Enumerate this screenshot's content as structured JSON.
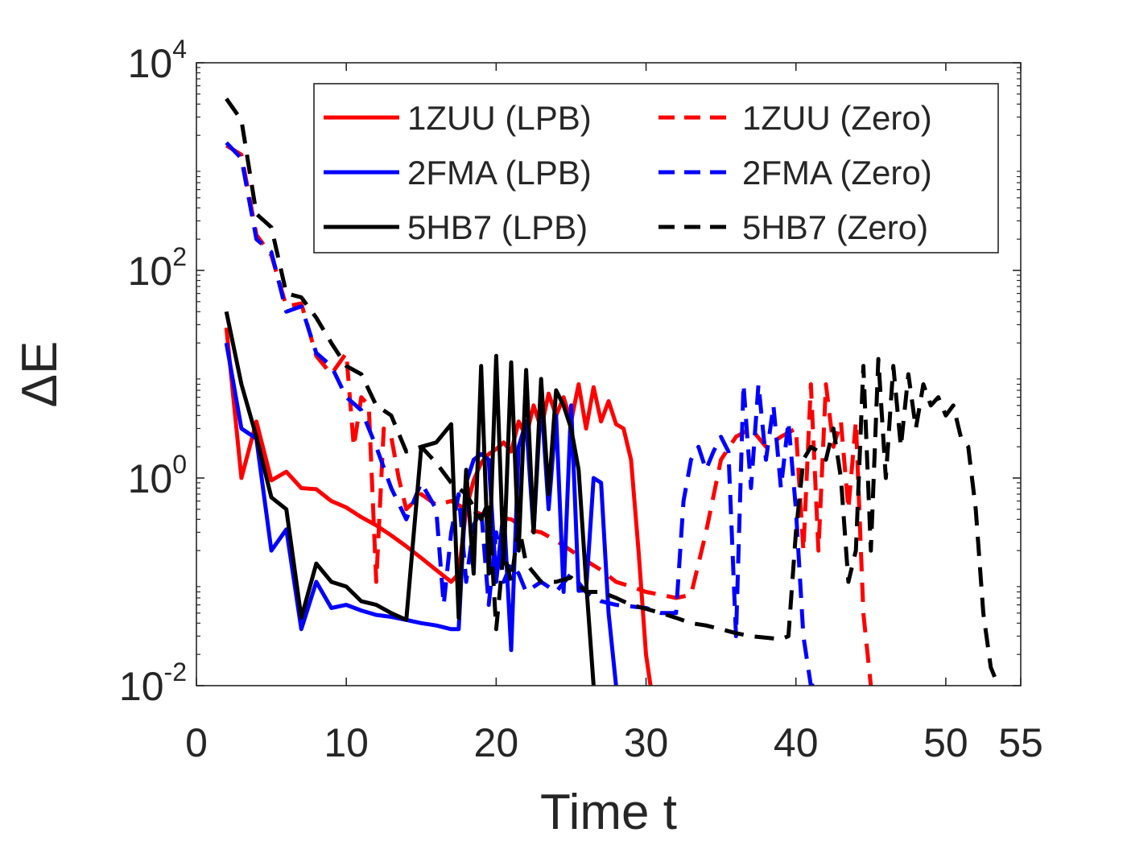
{
  "chart_data": {
    "type": "line",
    "title": "",
    "xlabel": "Time t",
    "ylabel": "ΔE",
    "xlim": [
      0,
      55
    ],
    "ylim_log10": [
      -2,
      4
    ],
    "xticks": [
      {
        "value": 0,
        "label": "0"
      },
      {
        "value": 10,
        "label": "10"
      },
      {
        "value": 20,
        "label": "20"
      },
      {
        "value": 30,
        "label": "30"
      },
      {
        "value": 40,
        "label": "40"
      },
      {
        "value": 50,
        "label": "50"
      },
      {
        "value": 55,
        "label": "55"
      }
    ],
    "yticks": [
      {
        "value": 0.01,
        "base": "10",
        "exp": "-2"
      },
      {
        "value": 1,
        "base": "10",
        "exp": "0"
      },
      {
        "value": 100,
        "base": "10",
        "exp": "2"
      },
      {
        "value": 10000,
        "base": "10",
        "exp": "4"
      }
    ],
    "grid": false,
    "legend_position": "top-right",
    "series": [
      {
        "name": "1ZUU (LPB)",
        "color": "#ff0000",
        "dash": "solid",
        "x": [
          2,
          3,
          4,
          5,
          6,
          7,
          8,
          9,
          10,
          11,
          12,
          13,
          14,
          15,
          16,
          17,
          17.5,
          18,
          18.5,
          19,
          19.5,
          20,
          20.5,
          21,
          21.5,
          22,
          22.5,
          23,
          23.5,
          24,
          24.5,
          25,
          25.5,
          26,
          26.5,
          27,
          27.5,
          28,
          28.5,
          29,
          29.5,
          30,
          30.3
        ],
        "y": [
          28,
          1,
          3.5,
          0.95,
          1.15,
          0.8,
          0.78,
          0.6,
          0.52,
          0.42,
          0.35,
          0.28,
          0.22,
          0.17,
          0.13,
          0.1,
          0.12,
          0.5,
          0.95,
          1.4,
          1.7,
          1.9,
          2.2,
          1.8,
          3.5,
          2.5,
          5,
          3,
          6.5,
          4,
          6,
          3.5,
          8,
          3,
          7.5,
          3.5,
          5.5,
          3.3,
          3,
          1.5,
          0.2,
          0.02,
          0.01
        ]
      },
      {
        "name": "1ZUU (Zero)",
        "color": "#ff0000",
        "dash": "dashed",
        "x": [
          2,
          3,
          4,
          5,
          6,
          7,
          8,
          9,
          10,
          10.5,
          11,
          11.5,
          12,
          12.5,
          13,
          13.5,
          14,
          15,
          16,
          17,
          18,
          19,
          20,
          21,
          22,
          23,
          24,
          25,
          26,
          27,
          28,
          29,
          30,
          31,
          32,
          33,
          34,
          35,
          36,
          37,
          38,
          39,
          40,
          40.5,
          41,
          41.5,
          42,
          42.5,
          43,
          43.5,
          44,
          44.5,
          45
        ],
        "y": [
          1600,
          1300,
          220,
          140,
          45,
          48,
          15,
          10,
          16,
          2,
          6,
          5,
          0.1,
          3,
          2.5,
          1,
          0.5,
          0.7,
          0.55,
          0.6,
          0.5,
          0.45,
          0.42,
          0.4,
          0.32,
          0.3,
          0.25,
          0.2,
          0.16,
          0.13,
          0.1,
          0.09,
          0.08,
          0.075,
          0.07,
          0.075,
          0.3,
          1.5,
          2.5,
          3,
          2,
          2.5,
          3,
          0.2,
          8,
          0.2,
          8,
          2,
          3.5,
          0.5,
          3.5,
          0.05,
          0.01
        ]
      },
      {
        "name": "2FMA (LPB)",
        "color": "#0000ff",
        "dash": "solid",
        "x": [
          2,
          3,
          4,
          5,
          6,
          7,
          8,
          9,
          10,
          11,
          12,
          13,
          14,
          15,
          16,
          17,
          17.5,
          18,
          18.5,
          19,
          19.5,
          20,
          20.5,
          21,
          21.5,
          22,
          22.5,
          23,
          23.5,
          24,
          24.5,
          25,
          25.5,
          26,
          26.5,
          27,
          27.5,
          28
        ],
        "y": [
          20,
          3,
          2.4,
          0.2,
          0.32,
          0.035,
          0.1,
          0.056,
          0.06,
          0.053,
          0.048,
          0.046,
          0.043,
          0.04,
          0.038,
          0.035,
          0.035,
          0.9,
          1.5,
          1.7,
          1.5,
          0.1,
          0.5,
          0.022,
          2,
          3.5,
          0.3,
          6,
          0.5,
          4,
          0.08,
          5,
          0.082,
          0.083,
          1,
          0.9,
          0.05,
          0.01
        ]
      },
      {
        "name": "2FMA (Zero)",
        "color": "#0000ff",
        "dash": "dashed",
        "x": [
          2,
          3,
          4,
          5,
          6,
          7,
          8,
          9,
          10,
          11,
          12,
          13,
          14,
          15,
          16,
          16.5,
          17,
          17.5,
          18,
          18.5,
          19,
          19.5,
          20,
          20.5,
          21,
          21.5,
          22,
          23,
          24,
          25,
          26,
          27,
          28,
          29,
          30,
          31,
          32,
          32.5,
          33,
          33.5,
          34,
          34.5,
          35,
          35.5,
          36,
          36.5,
          37,
          37.5,
          38,
          38.5,
          39,
          39.5,
          40,
          40.5,
          41,
          41.5
        ],
        "y": [
          1700,
          1200,
          200,
          150,
          40,
          45,
          16,
          12,
          6,
          4.5,
          2,
          0.8,
          0.4,
          0.9,
          0.5,
          0.06,
          0.3,
          0.7,
          0.1,
          0.35,
          0.5,
          0.06,
          0.3,
          0.1,
          0.15,
          0.12,
          0.08,
          0.1,
          0.08,
          0.12,
          0.08,
          0.065,
          0.06,
          0.058,
          0.056,
          0.05,
          0.05,
          0.6,
          1.5,
          2,
          1.2,
          1.8,
          2.5,
          1.8,
          0.03,
          8,
          0.8,
          8,
          1.5,
          5,
          0.8,
          3.5,
          0.5,
          0.03,
          0.01,
          0.01
        ]
      },
      {
        "name": "5HB7 (LPB)",
        "color": "#000000",
        "dash": "solid",
        "x": [
          2,
          3,
          4,
          5,
          6,
          7,
          8,
          9,
          10,
          11,
          12,
          13,
          14,
          15,
          16,
          17,
          17.5,
          18,
          18.5,
          19,
          19.5,
          20,
          20.5,
          21,
          21.5,
          22,
          22.5,
          23,
          23.5,
          24,
          24.5,
          25,
          25.5,
          26,
          26.5
        ],
        "y": [
          40,
          8,
          2.5,
          0.65,
          0.5,
          0.045,
          0.15,
          0.1,
          0.09,
          0.065,
          0.06,
          0.05,
          0.043,
          2,
          2.2,
          3.3,
          0.045,
          1.2,
          0.12,
          12,
          0.12,
          15,
          0.15,
          13,
          0.2,
          11,
          0.3,
          9,
          0.7,
          7,
          5,
          3,
          1.2,
          0.1,
          0.01
        ]
      },
      {
        "name": "5HB7 (Zero)",
        "color": "#000000",
        "dash": "dashed",
        "x": [
          2,
          3,
          4,
          5,
          6,
          7,
          8,
          9,
          10,
          11,
          12,
          13,
          14,
          15,
          16,
          17,
          18,
          19,
          19.5,
          20,
          20.5,
          21,
          21.5,
          22,
          23,
          24,
          25,
          26,
          27,
          28,
          29,
          30,
          31,
          32,
          33,
          34,
          35,
          36,
          37,
          38,
          39,
          39.5,
          40,
          40.5,
          41,
          41.5,
          42,
          42.5,
          43,
          43.5,
          44,
          44.5,
          45,
          45.5,
          46,
          46.5,
          47,
          47.5,
          48,
          48.5,
          49,
          49.5,
          50,
          50.5,
          51,
          51.5,
          52,
          52.5,
          53,
          53.5
        ],
        "y": [
          4500,
          2800,
          350,
          260,
          60,
          55,
          35,
          20,
          12,
          10,
          5,
          4,
          1.8,
          2,
          1.4,
          0.9,
          0.7,
          0.4,
          0.6,
          0.035,
          0.2,
          0.1,
          0.35,
          0.15,
          0.1,
          0.1,
          0.11,
          0.08,
          0.08,
          0.07,
          0.06,
          0.055,
          0.05,
          0.045,
          0.04,
          0.038,
          0.035,
          0.032,
          0.03,
          0.029,
          0.028,
          0.03,
          0.3,
          1.5,
          2,
          1.8,
          1.5,
          3,
          1,
          0.1,
          0.2,
          12,
          0.2,
          14,
          1,
          12,
          2,
          10,
          3,
          8,
          5,
          6,
          4,
          5,
          2.5,
          2,
          0.5,
          0.05,
          0.015,
          0.01
        ]
      }
    ]
  }
}
